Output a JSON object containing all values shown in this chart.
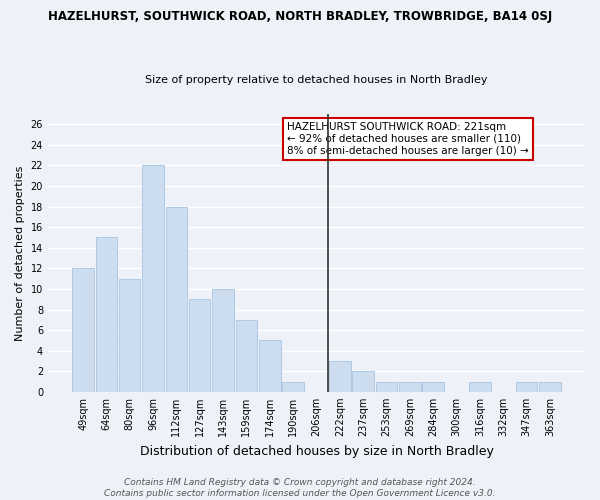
{
  "title": "HAZELHURST, SOUTHWICK ROAD, NORTH BRADLEY, TROWBRIDGE, BA14 0SJ",
  "subtitle": "Size of property relative to detached houses in North Bradley",
  "xlabel": "Distribution of detached houses by size in North Bradley",
  "ylabel": "Number of detached properties",
  "categories": [
    "49sqm",
    "64sqm",
    "80sqm",
    "96sqm",
    "112sqm",
    "127sqm",
    "143sqm",
    "159sqm",
    "174sqm",
    "190sqm",
    "206sqm",
    "222sqm",
    "237sqm",
    "253sqm",
    "269sqm",
    "284sqm",
    "300sqm",
    "316sqm",
    "332sqm",
    "347sqm",
    "363sqm"
  ],
  "values": [
    12,
    15,
    11,
    22,
    18,
    9,
    10,
    7,
    5,
    1,
    0,
    3,
    2,
    1,
    1,
    1,
    0,
    1,
    0,
    1,
    1
  ],
  "bar_color": "#ccddf0",
  "bar_edge_color": "#aac4e0",
  "vline_x_index": 11,
  "vline_color": "#333333",
  "vline_red_color": "#cc0000",
  "ylim": [
    0,
    27
  ],
  "yticks": [
    0,
    2,
    4,
    6,
    8,
    10,
    12,
    14,
    16,
    18,
    20,
    22,
    24,
    26
  ],
  "annotation_title": "HAZELHURST SOUTHWICK ROAD: 221sqm",
  "annotation_line1": "← 92% of detached houses are smaller (110)",
  "annotation_line2": "8% of semi-detached houses are larger (10) →",
  "footer1": "Contains HM Land Registry data © Crown copyright and database right 2024.",
  "footer2": "Contains public sector information licensed under the Open Government Licence v3.0.",
  "bg_color": "#eef2f8",
  "grid_color": "#ffffff",
  "title_fontsize": 8.5,
  "subtitle_fontsize": 8.0,
  "ylabel_fontsize": 8.0,
  "xlabel_fontsize": 9.0,
  "tick_fontsize": 7.0,
  "ann_fontsize": 7.5,
  "footer_fontsize": 6.5
}
